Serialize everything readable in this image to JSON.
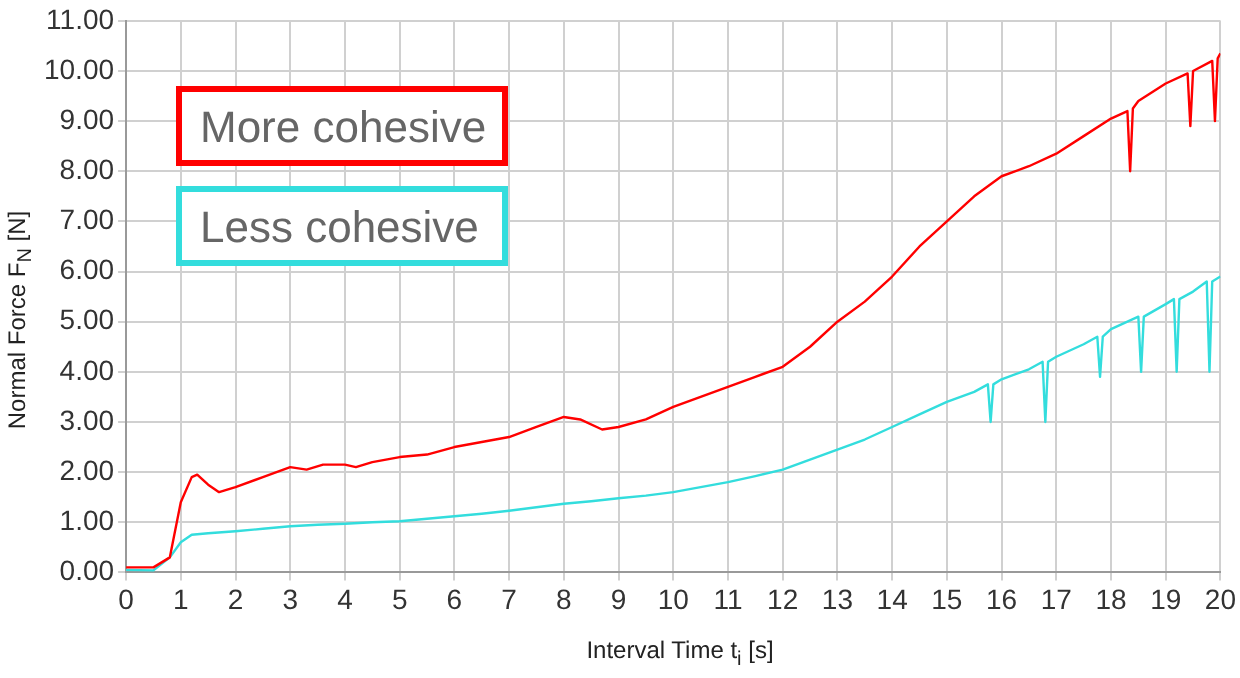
{
  "chart_data": {
    "type": "line",
    "xlabel": "Interval Time t$_{i}$ [s]",
    "ylabel": "Normal Force F$_{N}$ [N]",
    "xlim": [
      0,
      20
    ],
    "xticks": [
      0,
      1,
      2,
      3,
      4,
      5,
      6,
      7,
      8,
      9,
      10,
      11,
      12,
      13,
      14,
      15,
      16,
      17,
      18,
      19,
      20
    ],
    "ylim": [
      0,
      11
    ],
    "yticks": [
      {
        "value": 0,
        "label": "0.00"
      },
      {
        "value": 1,
        "label": "1.00"
      },
      {
        "value": 2,
        "label": "2.00"
      },
      {
        "value": 3,
        "label": "3.00"
      },
      {
        "value": 4,
        "label": "4.00"
      },
      {
        "value": 5,
        "label": "5.00"
      },
      {
        "value": 6,
        "label": "6.00"
      },
      {
        "value": 7,
        "label": "7.00"
      },
      {
        "value": 8,
        "label": "8.00"
      },
      {
        "value": 9,
        "label": "9.00"
      },
      {
        "value": 10,
        "label": "10.00"
      },
      {
        "value": 11,
        "label": "11.00"
      }
    ],
    "grid": true,
    "legend": "top left",
    "marker": "none",
    "line_style": "solid",
    "series": [
      {
        "name": "More cohesive",
        "color": "#ff0000",
        "x": [
          0,
          0.5,
          0.8,
          1.0,
          1.2,
          1.3,
          1.5,
          1.7,
          2.0,
          2.5,
          3.0,
          3.3,
          3.6,
          4.0,
          4.2,
          4.5,
          5,
          5.5,
          6,
          6.5,
          7,
          7.5,
          8,
          8.3,
          8.7,
          9,
          9.5,
          10,
          10.5,
          11,
          11.5,
          12,
          12.5,
          13,
          13.5,
          14,
          14.5,
          15,
          15.5,
          16,
          16.5,
          17,
          17.5,
          18,
          18.3,
          18.35,
          18.4,
          18.5,
          19,
          19.4,
          19.45,
          19.5,
          19.85,
          19.9,
          19.95,
          20
        ],
        "values": [
          0.1,
          0.1,
          0.3,
          1.4,
          1.9,
          1.95,
          1.75,
          1.6,
          1.7,
          1.9,
          2.1,
          2.05,
          2.15,
          2.15,
          2.1,
          2.2,
          2.3,
          2.35,
          2.5,
          2.6,
          2.7,
          2.9,
          3.1,
          3.05,
          2.85,
          2.9,
          3.05,
          3.3,
          3.5,
          3.7,
          3.9,
          4.1,
          4.5,
          5.0,
          5.4,
          5.9,
          6.5,
          7.0,
          7.5,
          7.9,
          8.1,
          8.35,
          8.7,
          9.05,
          9.2,
          8.0,
          9.25,
          9.4,
          9.75,
          9.95,
          8.9,
          10.0,
          10.2,
          9.0,
          10.25,
          10.35
        ]
      },
      {
        "name": "Less cohesive",
        "color": "#33dddd",
        "x": [
          0,
          0.5,
          0.8,
          1.0,
          1.2,
          1.5,
          2,
          2.5,
          3,
          3.5,
          4,
          4.5,
          5,
          5.5,
          6,
          6.5,
          7,
          7.5,
          8,
          8.5,
          9,
          9.5,
          10,
          10.5,
          11,
          11.5,
          12,
          12.5,
          13,
          13.5,
          14,
          14.5,
          15,
          15.5,
          15.75,
          15.8,
          15.85,
          16,
          16.5,
          16.75,
          16.8,
          16.85,
          17,
          17.5,
          17.75,
          17.8,
          17.85,
          18,
          18.5,
          18.55,
          18.6,
          19,
          19.15,
          19.2,
          19.25,
          19.5,
          19.75,
          19.8,
          19.85,
          20
        ],
        "values": [
          0.05,
          0.04,
          0.3,
          0.6,
          0.75,
          0.78,
          0.82,
          0.87,
          0.92,
          0.95,
          0.97,
          1.0,
          1.02,
          1.07,
          1.12,
          1.17,
          1.23,
          1.3,
          1.37,
          1.42,
          1.48,
          1.53,
          1.6,
          1.7,
          1.8,
          1.92,
          2.05,
          2.25,
          2.45,
          2.65,
          2.9,
          3.15,
          3.4,
          3.6,
          3.75,
          3.0,
          3.75,
          3.85,
          4.05,
          4.2,
          3.0,
          4.2,
          4.3,
          4.55,
          4.7,
          3.9,
          4.7,
          4.85,
          5.1,
          4.0,
          5.1,
          5.35,
          5.45,
          4.0,
          5.45,
          5.6,
          5.8,
          4.0,
          5.8,
          5.9
        ]
      }
    ]
  }
}
